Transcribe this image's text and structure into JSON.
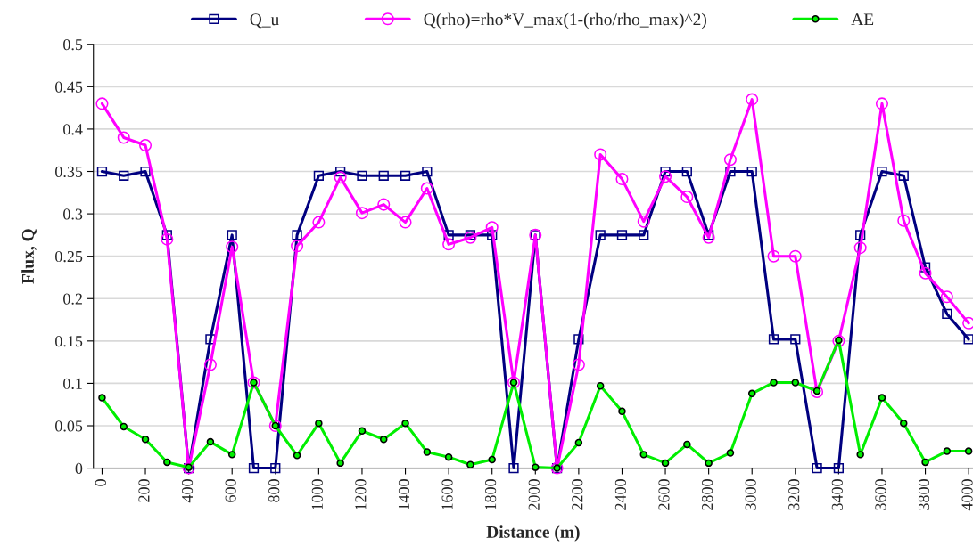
{
  "chart_data": {
    "type": "line",
    "xlabel": "Distance (m)",
    "ylabel": "Flux, Q",
    "x": [
      0,
      100,
      200,
      300,
      400,
      500,
      600,
      700,
      800,
      900,
      1000,
      1100,
      1200,
      1300,
      1400,
      1500,
      1600,
      1700,
      1800,
      1900,
      2000,
      2100,
      2200,
      2300,
      2400,
      2500,
      2600,
      2700,
      2800,
      2900,
      3000,
      3100,
      3200,
      3300,
      3400,
      3500,
      3600,
      3700,
      3800,
      3900,
      4000
    ],
    "xlim": [
      -40,
      4020
    ],
    "xticks": [
      0,
      200,
      400,
      600,
      800,
      1000,
      1200,
      1400,
      1600,
      1800,
      2000,
      2200,
      2400,
      2600,
      2800,
      3000,
      3200,
      3400,
      3600,
      3800,
      4000
    ],
    "ylim": [
      0,
      0.5
    ],
    "yticks": [
      0,
      0.05,
      0.1,
      0.15,
      0.2,
      0.25,
      0.3,
      0.35,
      0.4,
      0.45,
      0.5
    ],
    "grid": "y",
    "legend": "top",
    "series": [
      {
        "name": "Q_u",
        "color": "#000080",
        "marker": "square",
        "values": [
          0.35,
          0.345,
          0.35,
          0.275,
          0,
          0.152,
          0.275,
          0,
          0,
          0.275,
          0.345,
          0.35,
          0.345,
          0.345,
          0.345,
          0.35,
          0.275,
          0.275,
          0.275,
          0,
          0.275,
          0,
          0.152,
          0.275,
          0.275,
          0.275,
          0.35,
          0.35,
          0.275,
          0.35,
          0.35,
          0.152,
          0.152,
          0,
          0,
          0.275,
          0.35,
          0.345,
          0.237,
          0.182,
          0.152
        ]
      },
      {
        "name": "Q(rho)=rho*V_max(1-(rho/rho_max)^2)",
        "color": "#ff00ff",
        "marker": "circle",
        "values": [
          0.43,
          0.39,
          0.381,
          0.27,
          0,
          0.122,
          0.261,
          0.101,
          0.05,
          0.262,
          0.29,
          0.343,
          0.301,
          0.311,
          0.29,
          0.33,
          0.264,
          0.272,
          0.284,
          0.101,
          0.275,
          0,
          0.122,
          0.37,
          0.341,
          0.291,
          0.344,
          0.32,
          0.272,
          0.364,
          0.435,
          0.25,
          0.25,
          0.09,
          0.15,
          0.26,
          0.43,
          0.292,
          0.23,
          0.202,
          0.171
        ]
      },
      {
        "name": "AE",
        "color": "#00ee00",
        "marker": "circle",
        "values": [
          0.083,
          0.049,
          0.034,
          0.007,
          0.001,
          0.031,
          0.016,
          0.101,
          0.05,
          0.015,
          0.053,
          0.006,
          0.044,
          0.034,
          0.053,
          0.019,
          0.013,
          0.004,
          0.01,
          0.101,
          0.001,
          0,
          0.03,
          0.097,
          0.067,
          0.016,
          0.006,
          0.028,
          0.006,
          0.018,
          0.088,
          0.101,
          0.101,
          0.091,
          0.151,
          0.016,
          0.083,
          0.053,
          0.007,
          0.02,
          0.02
        ]
      }
    ]
  }
}
